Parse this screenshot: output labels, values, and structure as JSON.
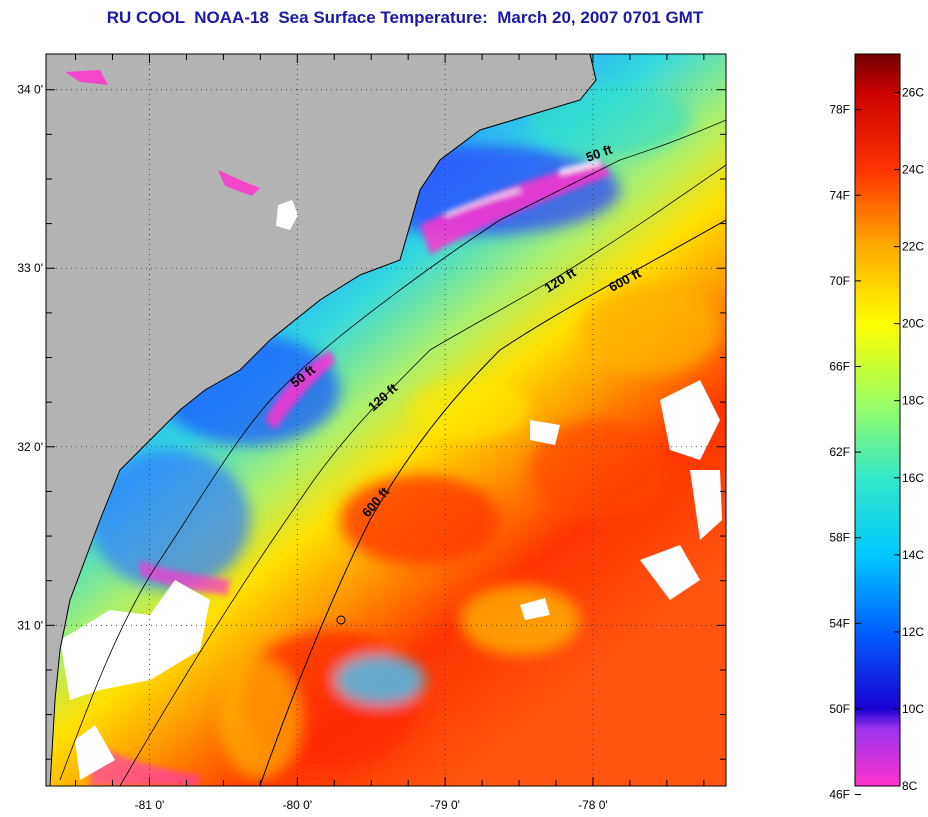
{
  "title": "RU COOL  NOAA-18  Sea Surface Temperature:  March 20, 2007 0701 GMT",
  "map": {
    "lon_range": [
      -81.7,
      -77.1
    ],
    "lat_range": [
      30.1,
      34.2
    ],
    "lon_ticks": [
      -81,
      -80,
      -79,
      -78
    ],
    "lat_ticks": [
      31,
      32,
      33,
      34
    ],
    "lon_labels": [
      "-81 0'",
      "-80 0'",
      "-79 0'",
      "-78 0'"
    ],
    "lat_labels": [
      "31 0'",
      "32 0'",
      "33 0'",
      "34 0'"
    ],
    "land_color": "#b3b3b3",
    "grid": "dotted"
  },
  "isobaths": [
    {
      "label": "50 ft"
    },
    {
      "label": "50 ft"
    },
    {
      "label": "120 ft"
    },
    {
      "label": "120 ft"
    },
    {
      "label": "600 ft"
    },
    {
      "label": "600 ft"
    }
  ],
  "colorbar": {
    "min_c": 8,
    "max_c": 27,
    "c_labels": [
      "26C",
      "24C",
      "22C",
      "20C",
      "18C",
      "16C",
      "14C",
      "12C",
      "10C",
      "8C"
    ],
    "f_labels": [
      "78F",
      "74F",
      "70F",
      "66F",
      "62F",
      "58F",
      "54F",
      "50F",
      "46F"
    ],
    "stops": [
      {
        "c": 8,
        "color": "#ff33cc"
      },
      {
        "c": 9.5,
        "color": "#9a33ee"
      },
      {
        "c": 10,
        "color": "#1a00d0"
      },
      {
        "c": 12,
        "color": "#0060ff"
      },
      {
        "c": 14,
        "color": "#00c8ff"
      },
      {
        "c": 16,
        "color": "#33e8c8"
      },
      {
        "c": 18,
        "color": "#a0ff60"
      },
      {
        "c": 20,
        "color": "#ffff00"
      },
      {
        "c": 22,
        "color": "#ffaa00"
      },
      {
        "c": 24,
        "color": "#ff3300"
      },
      {
        "c": 26,
        "color": "#cc0000"
      },
      {
        "c": 27,
        "color": "#700000"
      }
    ]
  }
}
